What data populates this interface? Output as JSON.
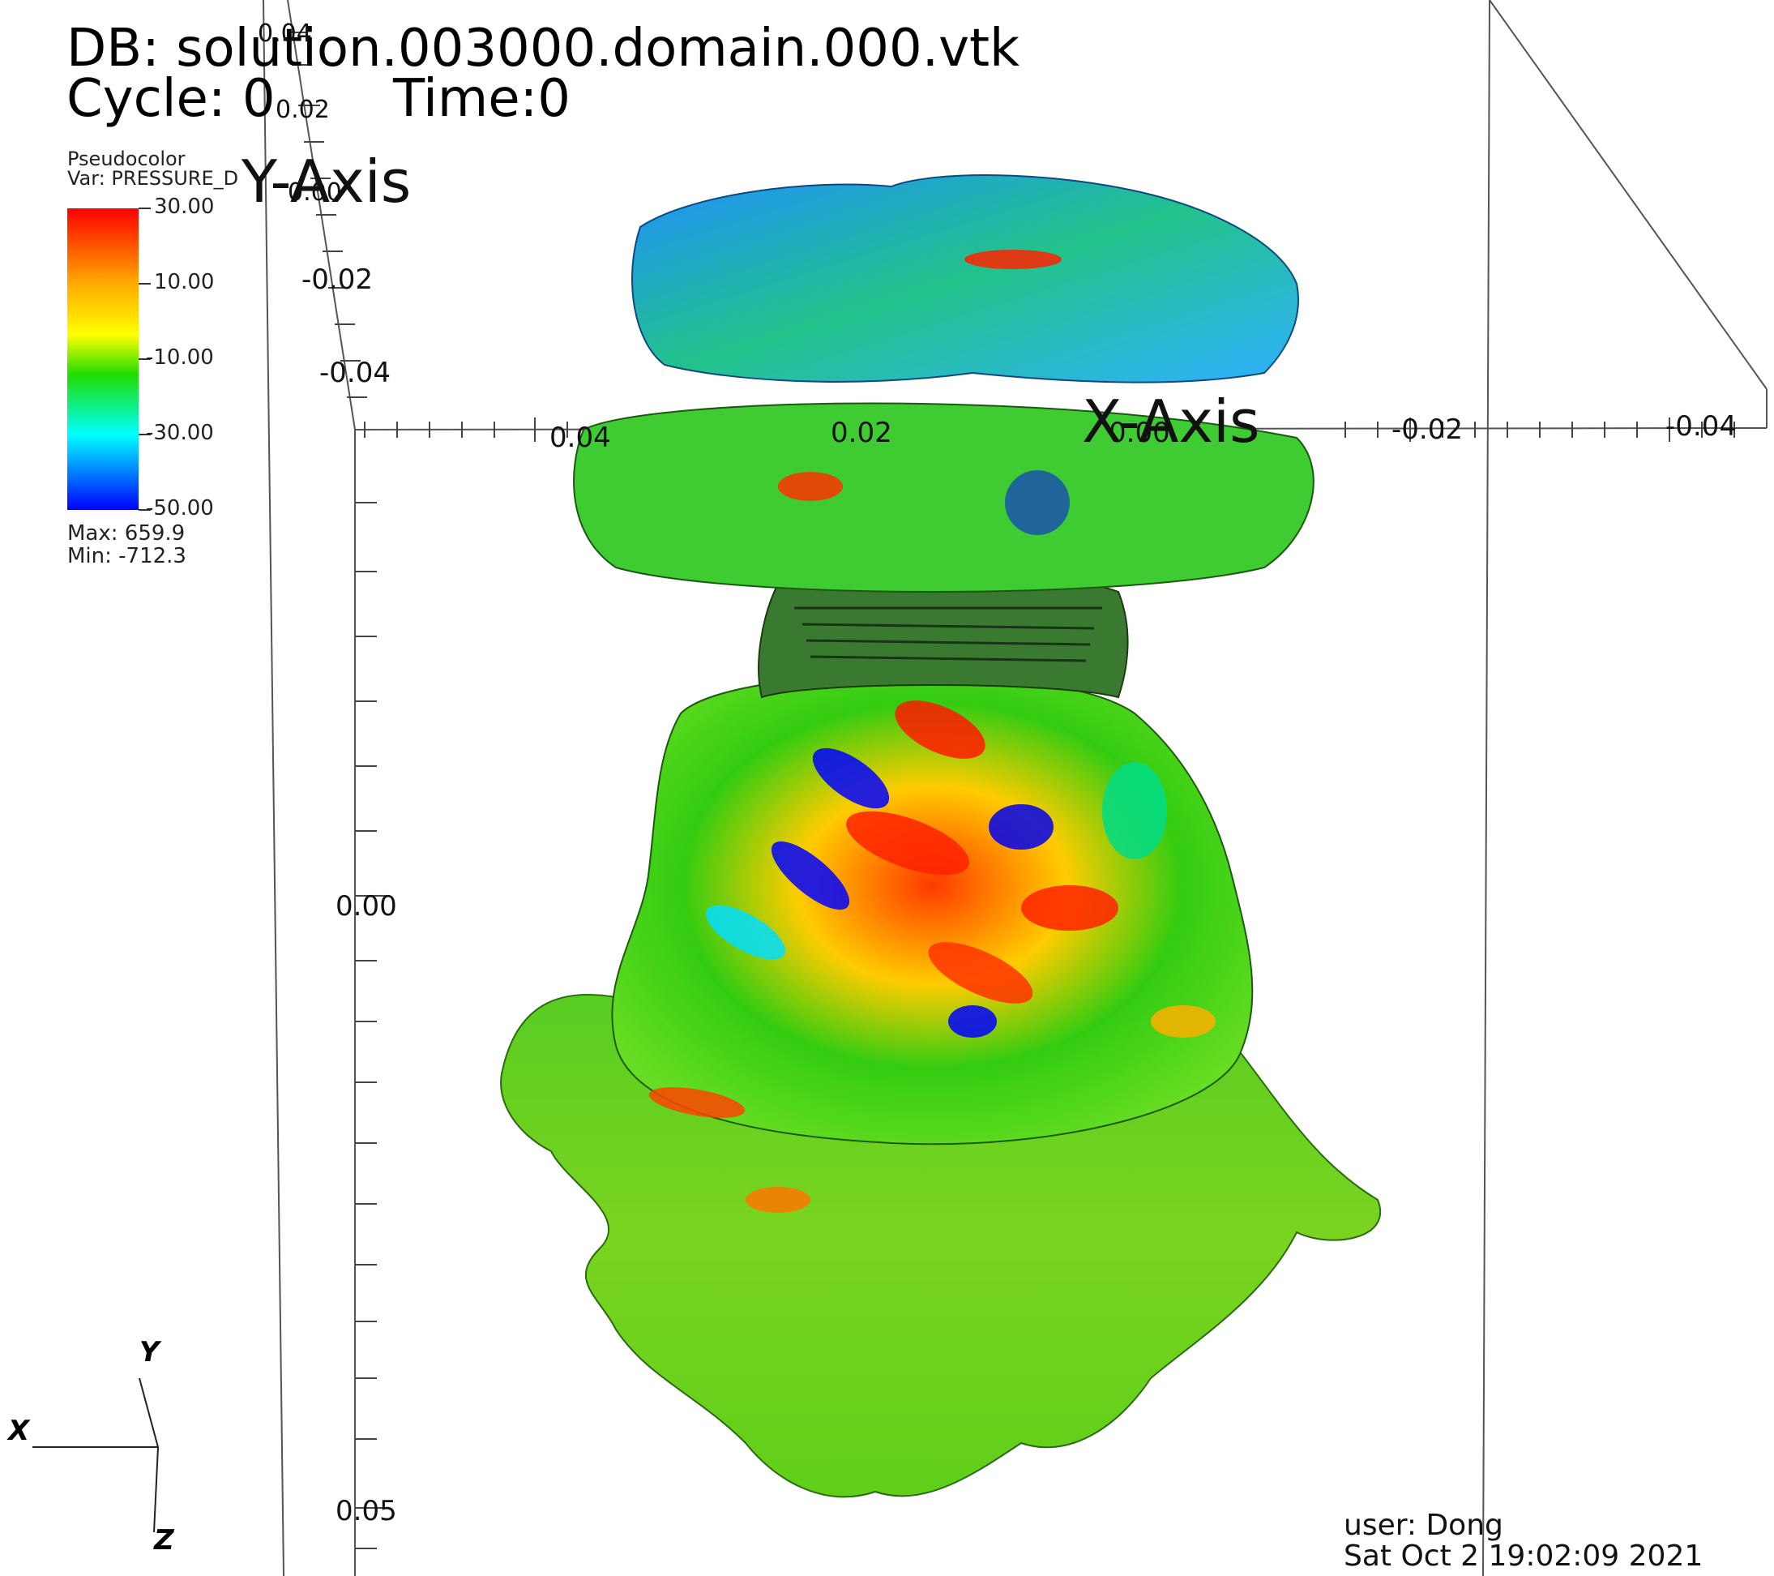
{
  "header": {
    "db_label": "DB: solution.003000.domain.000.vtk",
    "cycle_label": "Cycle: 0",
    "time_label": "Time:0"
  },
  "legend": {
    "plot_type": "Pseudocolor",
    "variable": "Var: PRESSURE_D",
    "ticks": [
      "30.00",
      "10.00",
      "-10.00",
      "-30.00",
      "-50.00"
    ],
    "max_label": "Max:  659.9",
    "min_label": "Min: -712.3",
    "colors": [
      "#ff0000",
      "#ff8c00",
      "#ffff00",
      "#00dd00",
      "#00ffff",
      "#0000ff"
    ]
  },
  "axes": {
    "y_title": "Y-Axis",
    "x_title": "X-Axis",
    "y_ticks": [
      "0.04",
      "0.02",
      "0.00",
      "-0.02",
      "-0.04"
    ],
    "x_ticks": [
      "0.04",
      "0.02",
      "0.00",
      "-0.02",
      "-0.04"
    ],
    "z_ticks": [
      "0.00",
      "0.05"
    ]
  },
  "triad": {
    "x": "X",
    "y": "Y",
    "z": "Z"
  },
  "footer": {
    "user": "user: Dong",
    "timestamp": "Sat Oct  2 19:02:09 2021"
  }
}
